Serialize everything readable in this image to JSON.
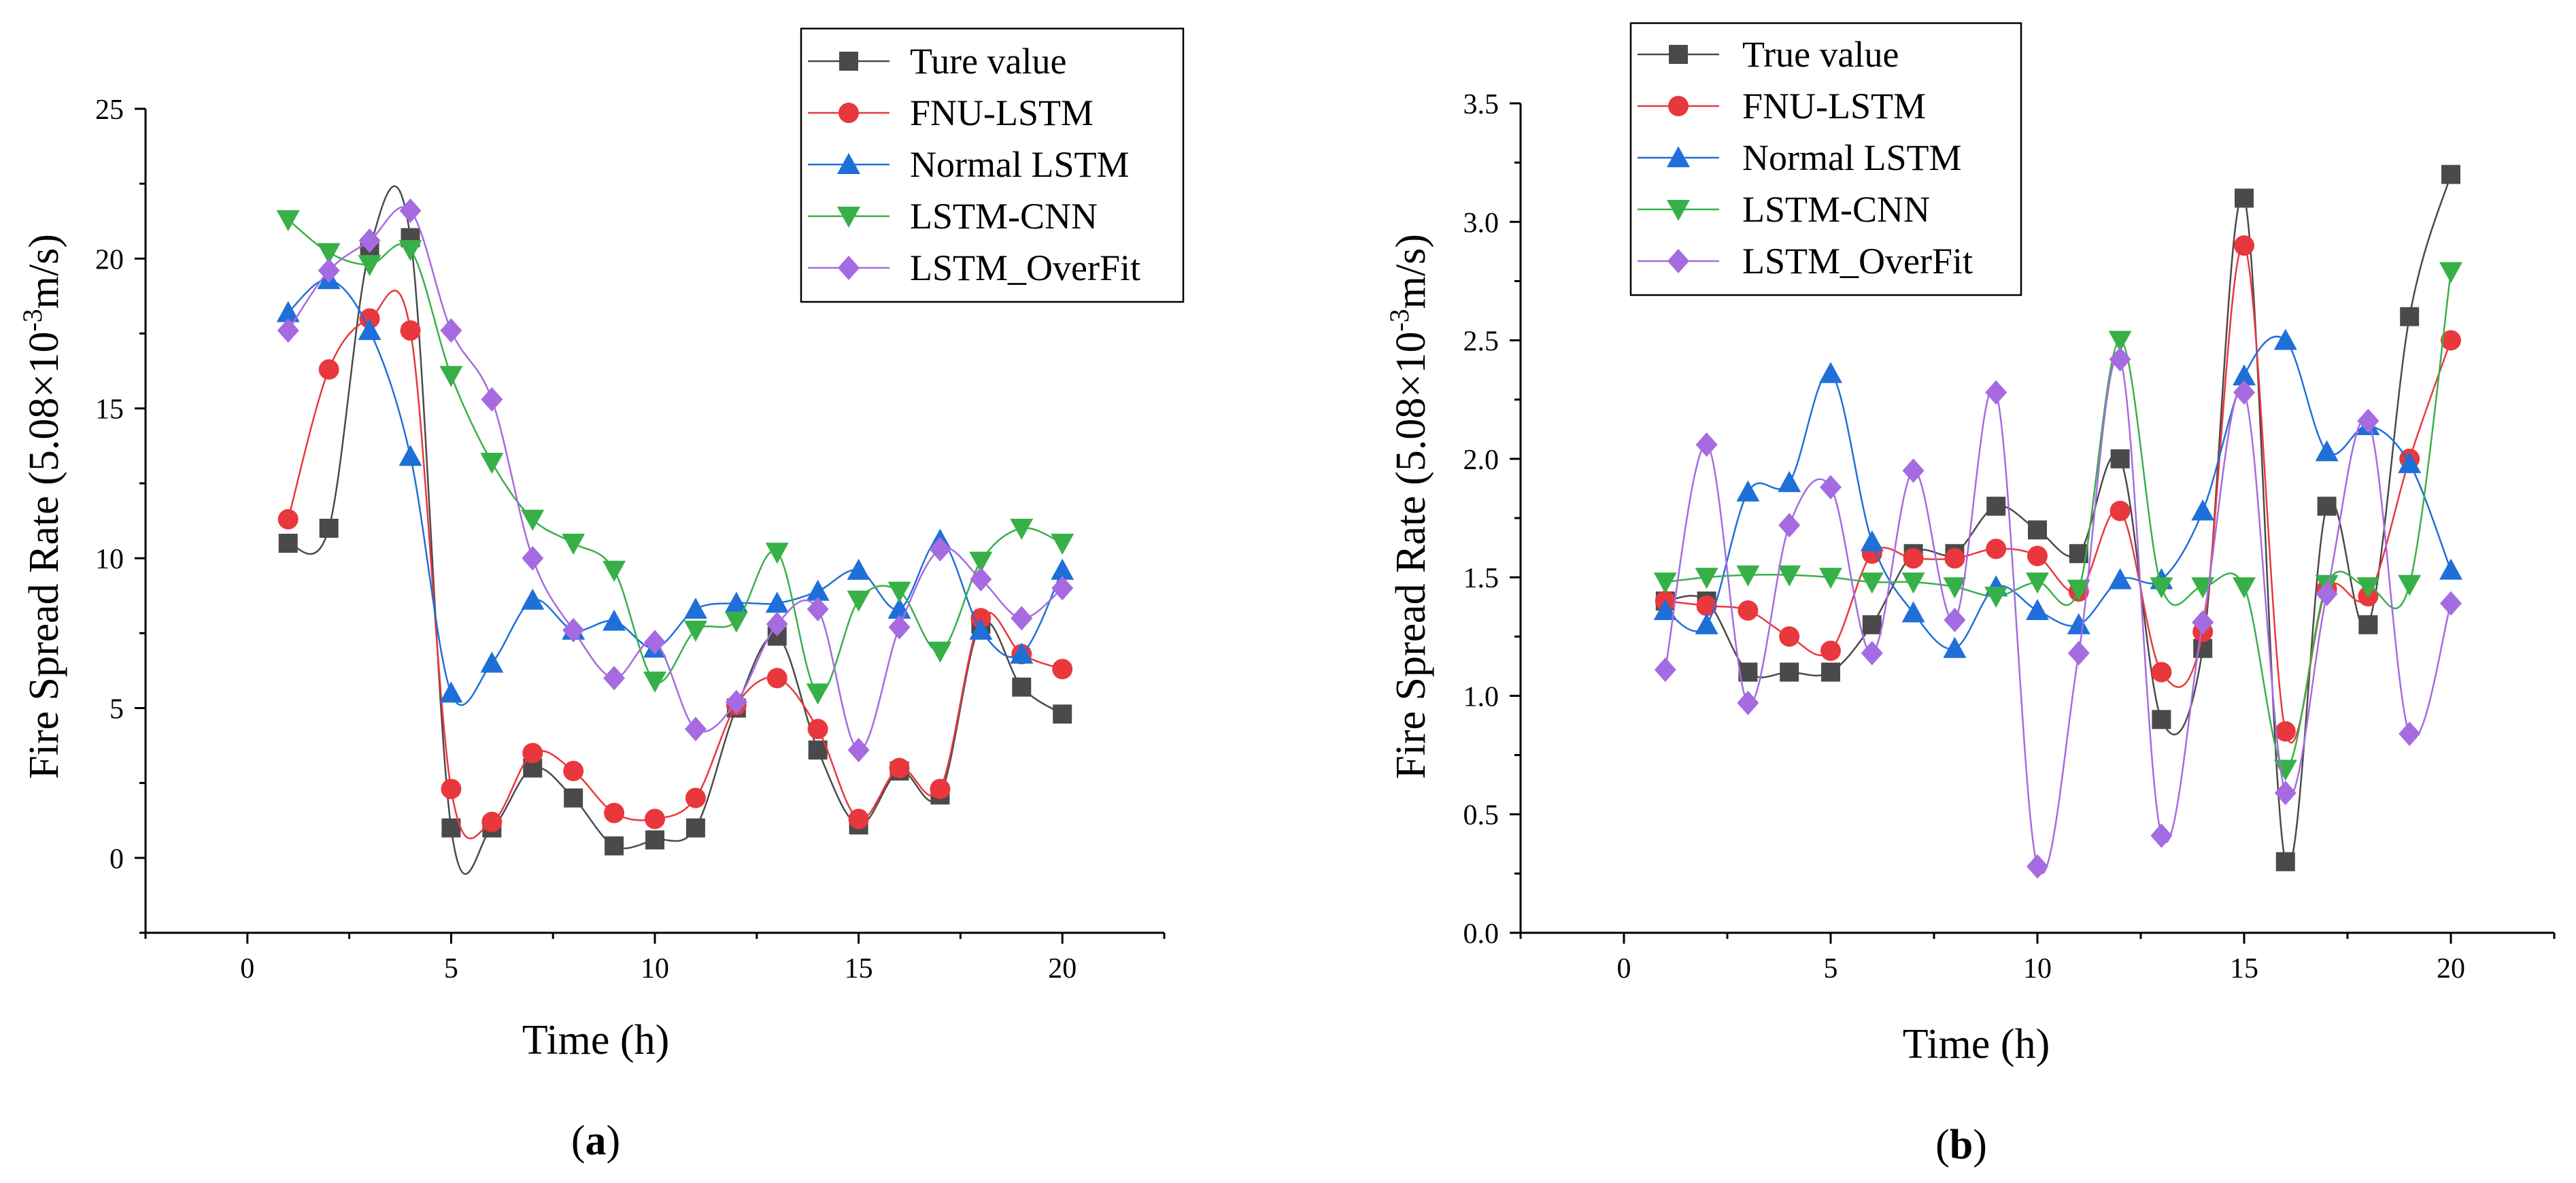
{
  "panels": [
    {
      "type": "line",
      "panel_label": "a",
      "xlabel": "Time (h)",
      "ylabel_prefix": "Fire Spread Rate (5.08×10",
      "ylabel_exp": "-3",
      "ylabel_suffix": "m/s)",
      "xlim": [
        -2.5,
        22.5
      ],
      "ylim": [
        -2.5,
        25
      ],
      "xticks": [
        0,
        5,
        10,
        15,
        20
      ],
      "yticks": [
        0,
        5,
        10,
        15,
        20,
        25
      ],
      "ytick_labels": [
        "0",
        "5",
        "10",
        "15",
        "20",
        "25"
      ],
      "legend_position": "top-right",
      "x": [
        1,
        2,
        3,
        4,
        5,
        6,
        7,
        8,
        9,
        10,
        11,
        12,
        13,
        14,
        15,
        16,
        17,
        18,
        19,
        20
      ],
      "series": [
        {
          "name": "Ture value",
          "color": "#4a4a4a",
          "marker": "square",
          "values": [
            10.5,
            11.0,
            20.3,
            20.7,
            1.0,
            1.0,
            3.0,
            2.0,
            0.4,
            0.6,
            1.0,
            5.0,
            7.4,
            3.6,
            1.1,
            2.9,
            2.1,
            7.8,
            5.7,
            4.8
          ]
        },
        {
          "name": "FNU-LSTM",
          "color": "#e8383d",
          "marker": "circle",
          "values": [
            11.3,
            16.3,
            18.0,
            17.6,
            2.3,
            1.2,
            3.5,
            2.9,
            1.5,
            1.3,
            2.0,
            5.1,
            6.0,
            4.3,
            1.3,
            3.0,
            2.3,
            8.0,
            6.8,
            6.3
          ]
        },
        {
          "name": "Normal LSTM",
          "color": "#1f6fd9",
          "marker": "triangle-up",
          "values": [
            18.2,
            19.3,
            17.6,
            13.4,
            5.5,
            6.5,
            8.6,
            7.6,
            7.9,
            7.0,
            8.3,
            8.5,
            8.5,
            8.9,
            9.6,
            8.3,
            10.6,
            7.6,
            6.8,
            9.6
          ]
        },
        {
          "name": "LSTM-CNN",
          "color": "#38b048",
          "marker": "triangle-down",
          "values": [
            21.3,
            20.2,
            19.8,
            20.3,
            16.1,
            13.2,
            11.3,
            10.5,
            9.6,
            5.9,
            7.6,
            7.9,
            10.2,
            5.5,
            8.6,
            8.9,
            6.9,
            9.9,
            11.0,
            10.5
          ]
        },
        {
          "name": "LSTM_OverFit",
          "color": "#a66be0",
          "marker": "diamond",
          "values": [
            17.6,
            19.6,
            20.6,
            21.6,
            17.6,
            15.3,
            10.0,
            7.6,
            6.0,
            7.2,
            4.3,
            5.2,
            7.8,
            8.3,
            3.6,
            7.7,
            10.3,
            9.3,
            8.0,
            9.0
          ]
        }
      ]
    },
    {
      "type": "line",
      "panel_label": "b",
      "xlabel": "Time (h)",
      "ylabel_prefix": "Fire Spread Rate (5.08×10",
      "ylabel_exp": "-3",
      "ylabel_suffix": "m/s)",
      "xlim": [
        -2.5,
        22.5
      ],
      "ylim": [
        0.0,
        3.5
      ],
      "xticks": [
        0,
        5,
        10,
        15,
        20
      ],
      "yticks": [
        0.0,
        0.5,
        1.0,
        1.5,
        2.0,
        2.5,
        3.0,
        3.5
      ],
      "ytick_labels": [
        "0.0",
        "0.5",
        "1.0",
        "1.5",
        "2.0",
        "2.5",
        "3.0",
        "3.5"
      ],
      "legend_position": "top-right",
      "x": [
        1,
        2,
        3,
        4,
        5,
        6,
        7,
        8,
        9,
        10,
        11,
        12,
        13,
        14,
        15,
        16,
        17,
        18,
        19,
        20
      ],
      "series": [
        {
          "name": "True value",
          "color": "#4a4a4a",
          "marker": "square",
          "values": [
            1.4,
            1.4,
            1.1,
            1.1,
            1.1,
            1.3,
            1.6,
            1.6,
            1.8,
            1.7,
            1.6,
            2.0,
            0.9,
            1.2,
            3.1,
            0.3,
            1.8,
            1.3,
            2.6,
            3.2
          ]
        },
        {
          "name": "FNU-LSTM",
          "color": "#e8383d",
          "marker": "circle",
          "values": [
            1.4,
            1.38,
            1.36,
            1.25,
            1.19,
            1.6,
            1.58,
            1.58,
            1.62,
            1.59,
            1.44,
            1.78,
            1.1,
            1.27,
            2.9,
            0.85,
            1.45,
            1.42,
            2.0,
            2.5
          ]
        },
        {
          "name": "Normal LSTM",
          "color": "#1f6fd9",
          "marker": "triangle-up",
          "values": [
            1.36,
            1.3,
            1.86,
            1.9,
            2.36,
            1.65,
            1.35,
            1.2,
            1.46,
            1.36,
            1.3,
            1.49,
            1.49,
            1.78,
            2.35,
            2.5,
            2.03,
            2.14,
            1.98,
            1.53
          ]
        },
        {
          "name": "LSTM-CNN",
          "color": "#38b048",
          "marker": "triangle-down",
          "values": [
            1.48,
            1.5,
            1.51,
            1.51,
            1.5,
            1.48,
            1.48,
            1.46,
            1.42,
            1.48,
            1.45,
            2.5,
            1.46,
            1.46,
            1.46,
            0.69,
            1.47,
            1.46,
            1.47,
            2.79
          ]
        },
        {
          "name": "LSTM_OverFit",
          "color": "#a66be0",
          "marker": "diamond",
          "values": [
            1.11,
            2.06,
            0.97,
            1.72,
            1.88,
            1.18,
            1.95,
            1.32,
            2.28,
            0.28,
            1.18,
            2.42,
            0.41,
            1.31,
            2.28,
            0.59,
            1.43,
            2.16,
            0.84,
            1.39
          ]
        }
      ]
    }
  ]
}
